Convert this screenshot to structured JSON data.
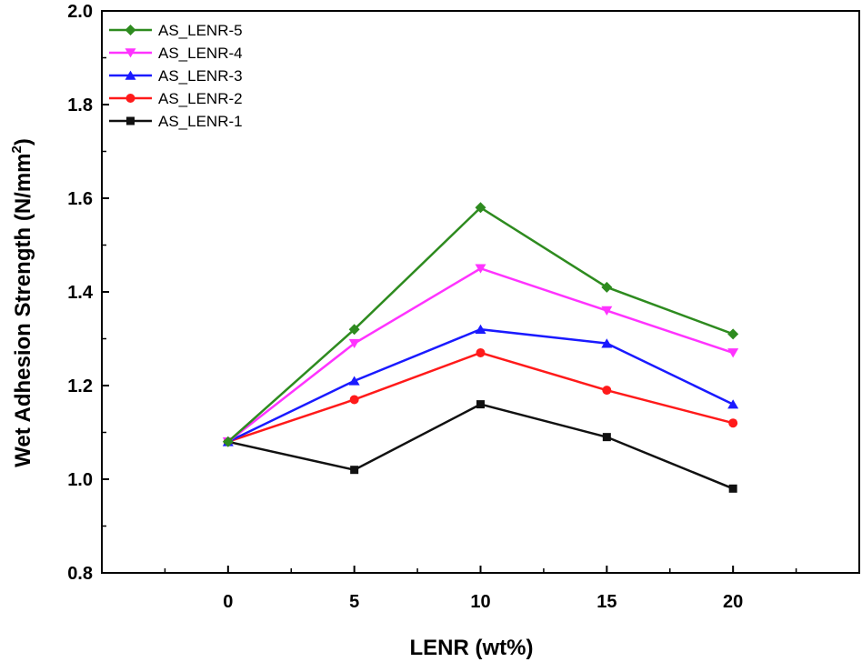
{
  "chart_data": {
    "type": "line",
    "x": [
      0,
      5,
      10,
      15,
      20
    ],
    "xlabel": "LENR (wt%)",
    "ylabel_main": "Wet Adhesion Strength (N/mm",
    "ylabel_sup": "2",
    "ylabel_end": ")",
    "xlim": [
      -5,
      25
    ],
    "ylim": [
      0.8,
      2.0
    ],
    "xticks": [
      "0",
      "5",
      "10",
      "15",
      "20"
    ],
    "yticks": [
      "0.8",
      "1.0",
      "1.2",
      "1.4",
      "1.6",
      "1.8",
      "2.0"
    ],
    "legend_position": "top-left",
    "series": [
      {
        "name": "AS_LENR-5",
        "color": "#2e8b1f",
        "marker": "diamond",
        "values": [
          1.08,
          1.32,
          1.58,
          1.41,
          1.31
        ]
      },
      {
        "name": "AS_LENR-4",
        "color": "#ff33ff",
        "marker": "triangle-down",
        "values": [
          1.08,
          1.29,
          1.45,
          1.36,
          1.27
        ]
      },
      {
        "name": "AS_LENR-3",
        "color": "#1a1aff",
        "marker": "triangle-up",
        "values": [
          1.08,
          1.21,
          1.32,
          1.29,
          1.16
        ]
      },
      {
        "name": "AS_LENR-2",
        "color": "#ff1a1a",
        "marker": "circle",
        "values": [
          1.08,
          1.17,
          1.27,
          1.19,
          1.12
        ]
      },
      {
        "name": "AS_LENR-1",
        "color": "#111111",
        "marker": "square",
        "values": [
          1.08,
          1.02,
          1.16,
          1.09,
          0.98
        ]
      }
    ]
  }
}
